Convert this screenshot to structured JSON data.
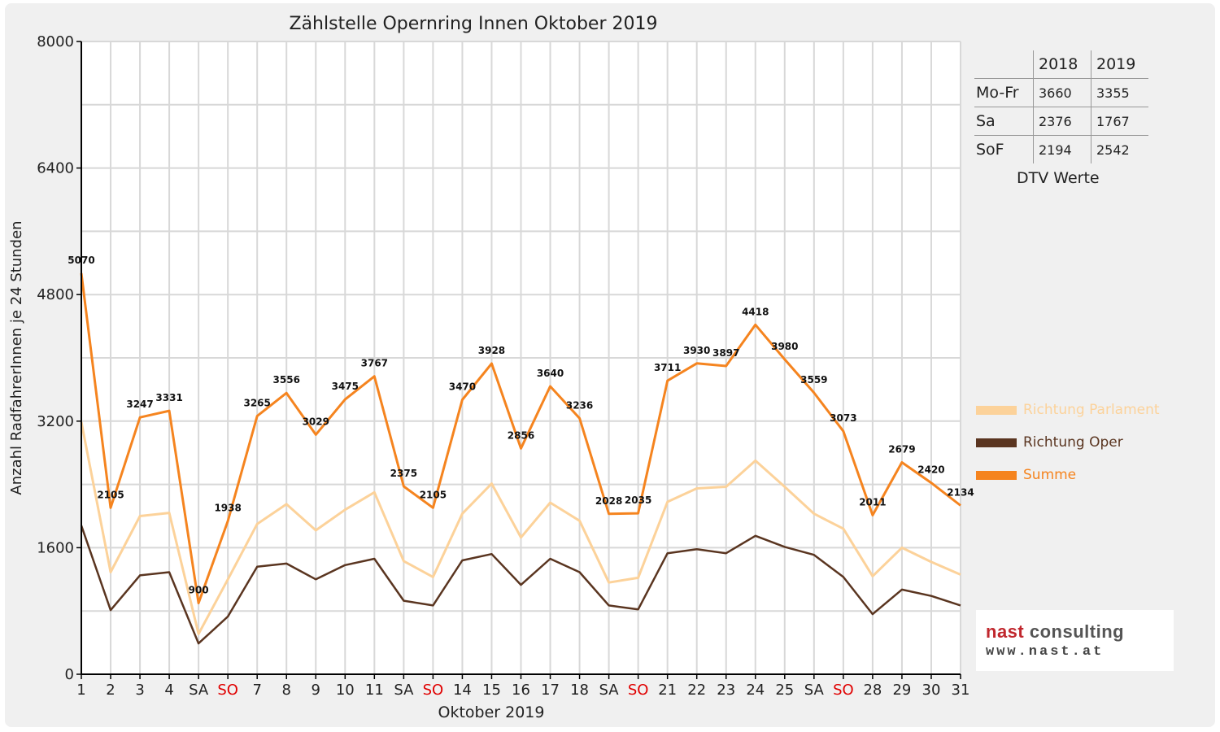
{
  "chart_data": {
    "type": "line",
    "title": "Zählstelle Opernring Innen Oktober 2019",
    "xlabel": "Oktober 2019",
    "ylabel": "Anzahl RadfahrerInnen je 24 Stunden",
    "ylim": [
      0,
      8000
    ],
    "yticks": [
      "0",
      "1600",
      "3200",
      "4800",
      "6400",
      "8000"
    ],
    "grid": true,
    "legend_position": "right",
    "categories": [
      "1",
      "2",
      "3",
      "4",
      "SA",
      "SO",
      "7",
      "8",
      "9",
      "10",
      "11",
      "SA",
      "SO",
      "14",
      "15",
      "16",
      "17",
      "18",
      "SA",
      "SO",
      "21",
      "22",
      "23",
      "24",
      "25",
      "SA",
      "SO",
      "28",
      "29",
      "30",
      "31"
    ],
    "weekend_days": [
      "SA",
      "SO"
    ],
    "sunday_color": "#e00000",
    "series": [
      {
        "name": "Richtung Parlament",
        "color": "#fcd29a",
        "values": [
          3190,
          1290,
          2000,
          2040,
          510,
          1200,
          1900,
          2150,
          1820,
          2080,
          2300,
          1430,
          1230,
          2030,
          2410,
          1730,
          2170,
          1940,
          1160,
          1220,
          2180,
          2350,
          2370,
          2700,
          2370,
          2030,
          1840,
          1240,
          1600,
          1420,
          1260
        ]
      },
      {
        "name": "Richtung Oper",
        "color": "#5a3520",
        "values": [
          1880,
          810,
          1250,
          1290,
          390,
          730,
          1360,
          1400,
          1200,
          1380,
          1460,
          930,
          870,
          1440,
          1520,
          1130,
          1460,
          1290,
          870,
          820,
          1530,
          1580,
          1530,
          1750,
          1610,
          1510,
          1230,
          760,
          1070,
          990,
          870
        ]
      },
      {
        "name": "Summe",
        "color": "#f5841f",
        "values": [
          5070,
          2105,
          3247,
          3331,
          900,
          1938,
          3265,
          3556,
          3029,
          3475,
          3767,
          2375,
          2105,
          3470,
          3928,
          2856,
          3640,
          3236,
          2028,
          2035,
          3711,
          3930,
          3897,
          4418,
          3980,
          3559,
          3073,
          2011,
          2679,
          2420,
          2134
        ]
      }
    ],
    "data_labels": [
      "5070",
      "2105",
      "3247",
      "3331",
      "900",
      "1938",
      "3265",
      "3556",
      "3029",
      "3475",
      "3767",
      "2375",
      "2105",
      "3470",
      "3928",
      "2856",
      "3640",
      "3236",
      "2028",
      "2035",
      "3711",
      "3930",
      "3897",
      "4418",
      "3980",
      "3559",
      "3073",
      "2011",
      "2679",
      "2420",
      "2134"
    ]
  },
  "dtv": {
    "headers": [
      "2018",
      "2019"
    ],
    "rows": [
      {
        "label": "Mo-Fr",
        "v2018": "3660",
        "v2019": "3355"
      },
      {
        "label": "Sa",
        "v2018": "2376",
        "v2019": "1767"
      },
      {
        "label": "SoF",
        "v2018": "2194",
        "v2019": "2542"
      }
    ],
    "caption": "DTV Werte"
  },
  "logo": {
    "line1_a": "nast",
    "line1_b": " consulting",
    "line2": "www.nast.at"
  }
}
